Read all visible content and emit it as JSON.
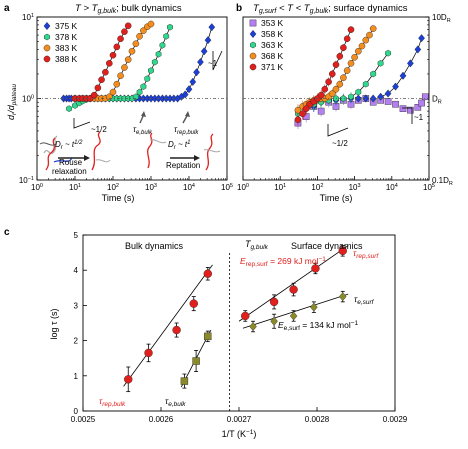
{
  "colors": {
    "375": "#1c3fd6",
    "378": "#2ed88c",
    "383": "#f38d1d",
    "388": "#e0201d",
    "353": "#b47ff0",
    "358": "#1c3fd6",
    "363": "#2ed88c",
    "368": "#f38d1d",
    "371": "#e0201d",
    "rep": "#e0201d",
    "e": "#8a8a2a",
    "red_text": "#e0201d"
  },
  "chart_data": [
    {
      "id": "a",
      "type": "scatter",
      "panel_label": "a",
      "title_parts": {
        "pre": "T > T",
        "sub": "g,bulk",
        "post": "; bulk dynamics"
      },
      "xlabel": "Time (s)",
      "ylabel_main": "d",
      "ylabel_sub1": "r",
      "ylabel_mid": "/d",
      "ylabel_sub2": "plateau",
      "xscale": "log",
      "yscale": "log",
      "xlim": [
        1,
        100000
      ],
      "ylim": [
        0.1,
        10
      ],
      "x_ticks": [
        {
          "v": 1,
          "b": "10",
          "e": "0"
        },
        {
          "v": 10,
          "b": "10",
          "e": "1"
        },
        {
          "v": 100,
          "b": "10",
          "e": "2"
        },
        {
          "v": 1000,
          "b": "10",
          "e": "3"
        },
        {
          "v": 10000,
          "b": "10",
          "e": "4"
        },
        {
          "v": 100000,
          "b": "10",
          "e": "5"
        }
      ],
      "y_ticks": [
        {
          "v": 0.1,
          "b": "10",
          "e": "−1"
        },
        {
          "v": 1,
          "b": "10",
          "e": "0"
        },
        {
          "v": 10,
          "b": "10",
          "e": "1"
        }
      ],
      "legend": [
        "375 K",
        "378 K",
        "383 K",
        "388 K"
      ],
      "series": [
        {
          "name": "375 K",
          "color_key": "375",
          "marker": "diamond",
          "x": [
            5,
            6,
            7,
            8,
            10,
            13,
            16,
            20,
            25,
            32,
            40,
            50,
            63,
            80,
            100,
            126,
            158,
            200,
            251,
            316,
            400,
            500,
            630,
            800,
            1000,
            1260,
            1580,
            2000,
            2510,
            3160,
            3980,
            5010,
            6310,
            7940,
            10000,
            12600,
            15800,
            20000,
            25100,
            31600,
            39800
          ],
          "y": [
            1,
            1,
            1,
            1,
            1,
            1,
            1,
            1,
            1,
            1,
            1,
            1,
            1,
            1,
            1,
            1,
            1,
            1,
            1,
            1,
            1,
            1,
            1,
            1,
            1,
            1,
            1,
            1,
            1,
            1,
            1,
            1,
            1.05,
            1.12,
            1.3,
            1.6,
            2.1,
            2.8,
            3.8,
            5.2,
            7.5
          ]
        },
        {
          "name": "378 K",
          "color_key": "378",
          "marker": "hexagon",
          "x": [
            7,
            10,
            13,
            16,
            20,
            25,
            32,
            40,
            50,
            63,
            80,
            100,
            126,
            158,
            200,
            251,
            316,
            400,
            500,
            630,
            800,
            1000,
            1260,
            1580,
            2000,
            2510,
            3160
          ],
          "y": [
            0.75,
            0.82,
            0.88,
            0.93,
            0.97,
            1,
            1,
            1,
            1,
            1,
            1,
            1,
            1,
            1,
            1,
            1,
            1,
            1.05,
            1.2,
            1.4,
            1.75,
            2.2,
            2.8,
            3.5,
            4.5,
            5.8,
            7.5
          ]
        },
        {
          "name": "383 K",
          "color_key": "383",
          "marker": "circle",
          "x": [
            10,
            13,
            16,
            20,
            25,
            32,
            40,
            50,
            63,
            80,
            100,
            126,
            158,
            200,
            251,
            316,
            400,
            500,
            630,
            800,
            1000
          ],
          "y": [
            1,
            1,
            1,
            1,
            1,
            1,
            1,
            1,
            1,
            1.05,
            1.2,
            1.5,
            1.9,
            2.4,
            3,
            3.8,
            4.7,
            5.8,
            6.8,
            7.6,
            8.2
          ]
        },
        {
          "name": "388 K",
          "color_key": "388",
          "marker": "circle",
          "x": [
            10,
            13,
            16,
            20,
            25,
            32,
            40,
            50,
            63,
            80,
            100,
            126,
            158,
            200,
            251
          ],
          "y": [
            1,
            1,
            1,
            1,
            1,
            1.1,
            1.35,
            1.7,
            2.1,
            2.7,
            3.4,
            4.3,
            5.4,
            6.6,
            7.8
          ]
        }
      ],
      "annotations": {
        "slope1": "~1/2",
        "slope2": "~1",
        "tau_e": "τ",
        "tau_e_sub": "e,bulk",
        "tau_rep": "τ",
        "tau_rep_sub": "rep,bulk",
        "rouse": "Rouse",
        "rouse2": "relaxation",
        "dr1": "D",
        "dr1_sub": "r",
        "dr1_rest": " ~ t",
        "dr1_exp": "1/2",
        "reptation": "Reptation",
        "dr2": "D",
        "dr2_sub": "r",
        "dr2_rest": " ~ t",
        "dr2_exp": "1"
      }
    },
    {
      "id": "b",
      "type": "scatter",
      "panel_label": "b",
      "title_parts": {
        "pre": "T",
        "sub1": "g,surf",
        "mid": " < T < T",
        "sub2": "g,bulk",
        "post": "; surface dynamics"
      },
      "xlabel": "Time (s)",
      "xscale": "log",
      "yscale": "log",
      "xlim": [
        1,
        100000
      ],
      "ylim": [
        0.1,
        10
      ],
      "x_ticks": [
        {
          "v": 1,
          "b": "10",
          "e": "0"
        },
        {
          "v": 10,
          "b": "10",
          "e": "1"
        },
        {
          "v": 100,
          "b": "10",
          "e": "2"
        },
        {
          "v": 1000,
          "b": "10",
          "e": "3"
        },
        {
          "v": 10000,
          "b": "10",
          "e": "4"
        },
        {
          "v": 100000,
          "b": "10",
          "e": "5"
        }
      ],
      "y_ticks_right": [
        {
          "v": 0.1,
          "t": "0.1D",
          "s": "R"
        },
        {
          "v": 1,
          "t": "D",
          "s": "R"
        },
        {
          "v": 10,
          "t": "10D",
          "s": "R"
        }
      ],
      "legend": [
        "353 K",
        "358 K",
        "363 K",
        "368 K",
        "371 K"
      ],
      "series": [
        {
          "name": "353 K",
          "color_key": "353",
          "marker": "square",
          "x": [
            30,
            50,
            80,
            126,
            200,
            316,
            500,
            800,
            1260,
            2000,
            3160,
            5010,
            7940,
            12600,
            20000,
            31600,
            50100,
            63100,
            79400
          ],
          "y": [
            0.5,
            0.6,
            0.8,
            0.7,
            0.9,
            0.8,
            0.95,
            0.85,
            0.95,
            1.0,
            0.9,
            0.95,
            0.92,
            0.85,
            0.75,
            0.72,
            0.78,
            0.88,
            1.05
          ]
        },
        {
          "name": "358 K",
          "color_key": "358",
          "marker": "diamond",
          "x": [
            30,
            50,
            80,
            126,
            200,
            316,
            500,
            800,
            1260,
            2000,
            3160,
            5010,
            7940,
            12600,
            20000,
            31600,
            50100,
            63100
          ],
          "y": [
            0.7,
            0.75,
            0.8,
            0.9,
            0.95,
            0.95,
            1.0,
            1.0,
            1.0,
            1.0,
            1.0,
            1.05,
            1.15,
            1.4,
            1.9,
            2.7,
            4.0,
            5.5
          ]
        },
        {
          "name": "363 K",
          "color_key": "363",
          "marker": "hexagon",
          "x": [
            30,
            50,
            80,
            126,
            200,
            316,
            500,
            800,
            1260,
            2000,
            3160,
            5010,
            7940
          ],
          "y": [
            0.65,
            0.75,
            0.85,
            0.9,
            0.95,
            1.0,
            1.0,
            1.05,
            1.2,
            1.5,
            2.0,
            2.7,
            3.6
          ]
        },
        {
          "name": "368 K",
          "color_key": "368",
          "marker": "circle",
          "x": [
            30,
            40,
            50,
            63,
            80,
            100,
            126,
            158,
            200,
            251,
            316,
            400,
            500,
            630,
            800,
            1000,
            1260,
            1580,
            2000,
            2510,
            3160
          ],
          "y": [
            0.72,
            0.8,
            0.85,
            0.9,
            0.95,
            0.98,
            1.0,
            1.0,
            1.05,
            1.15,
            1.3,
            1.5,
            1.8,
            2.2,
            2.7,
            3.2,
            3.8,
            4.4,
            5.2,
            6.0,
            7.2
          ]
        },
        {
          "name": "371 K",
          "color_key": "371",
          "marker": "circle",
          "x": [
            30,
            40,
            50,
            63,
            80,
            100,
            126,
            158,
            200,
            251,
            316,
            400,
            500,
            630,
            800
          ],
          "y": [
            0.55,
            0.65,
            0.75,
            0.85,
            0.92,
            1.0,
            1.1,
            1.3,
            1.6,
            2.0,
            2.6,
            3.3,
            4.2,
            5.4,
            7.0
          ]
        }
      ],
      "annotations": {
        "slope1": "~1/2",
        "slope2": "~1"
      }
    },
    {
      "id": "c",
      "type": "scatter",
      "panel_label": "c",
      "xlabel": "1/T (K",
      "xlabel_exp": "−1",
      "xlabel_end": ")",
      "ylabel": "log τ (s)",
      "xlim": [
        0.0025,
        0.0029
      ],
      "ylim": [
        0,
        5
      ],
      "x_ticks": [
        "0.0025",
        "0.0026",
        "0.0027",
        "0.0028",
        "0.0029"
      ],
      "y_ticks": [
        "0",
        "1",
        "2",
        "3",
        "4",
        "5"
      ],
      "region_labels": {
        "bulk": "Bulk dynamics",
        "surface": "Surface dynamics",
        "tg": "T",
        "tg_sub": "g,bulk"
      },
      "divider_x": 0.002688,
      "series": [
        {
          "name": "τ rep,bulk",
          "color_key": "rep",
          "marker": "circle",
          "x": [
            0.002558,
            0.002584,
            0.00262,
            0.002642,
            0.00266
          ],
          "y": [
            0.9,
            1.65,
            2.3,
            3.05,
            3.9
          ],
          "err": [
            0.35,
            0.25,
            0.2,
            0.2,
            0.18
          ]
        },
        {
          "name": "τ e,bulk",
          "color_key": "e",
          "marker": "square",
          "x": [
            0.00263,
            0.002645,
            0.00266
          ],
          "y": [
            0.85,
            1.42,
            2.12
          ],
          "err": [
            0.2,
            0.3,
            0.15
          ]
        },
        {
          "name": "τ rep,surf",
          "color_key": "rep",
          "marker": "circle",
          "x": [
            0.002708,
            0.002745,
            0.00277,
            0.002798,
            0.002833
          ],
          "y": [
            2.7,
            3.1,
            3.45,
            4.05,
            4.55
          ],
          "err": [
            0.15,
            0.2,
            0.18,
            0.15,
            0.15
          ]
        },
        {
          "name": "τ e,surf",
          "color_key": "e",
          "marker": "diamond",
          "x": [
            0.002718,
            0.002745,
            0.00277,
            0.002796,
            0.002833
          ],
          "y": [
            2.4,
            2.55,
            2.7,
            2.95,
            3.25
          ],
          "err": [
            0.15,
            0.2,
            0.15,
            0.15,
            0.15
          ]
        }
      ],
      "fits": [
        {
          "color_key": "rep",
          "x": [
            0.002552,
            0.002666
          ],
          "y": [
            0.7,
            4.15
          ]
        },
        {
          "color_key": "rep",
          "x": [
            0.0027,
            0.00284
          ],
          "y": [
            2.55,
            4.7
          ]
        },
        {
          "color_key": "e",
          "x": [
            0.002626,
            0.002664
          ],
          "y": [
            0.68,
            2.3
          ]
        },
        {
          "color_key": "e",
          "x": [
            0.002705,
            0.00284
          ],
          "y": [
            2.35,
            3.32
          ]
        }
      ],
      "annotations": {
        "rep_bulk": "τ",
        "rep_bulk_sub": "rep,bulk",
        "e_bulk": "τ",
        "e_bulk_sub": "e,bulk",
        "rep_surf": "τ",
        "rep_surf_sub": "rep,surf",
        "e_surf": "τ",
        "e_surf_sub": "e,surf",
        "erep": "E",
        "erep_sub": "rep,surf",
        "erep_val": " = 269 kJ mol",
        "erep_exp": "−1",
        "ee": "E",
        "ee_sub": "e,surf",
        "ee_val": " = 134 kJ mol",
        "ee_exp": "−1"
      }
    }
  ]
}
